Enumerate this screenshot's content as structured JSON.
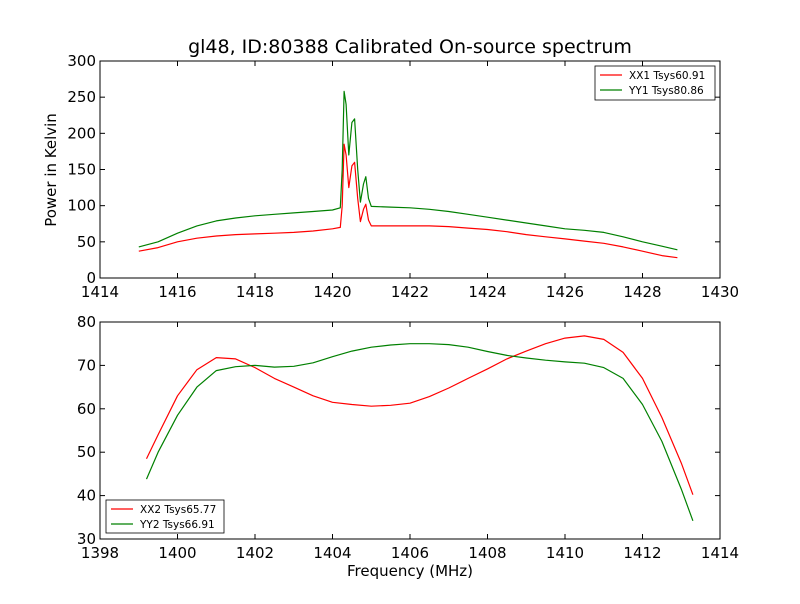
{
  "chart_data": [
    {
      "type": "line",
      "title": "gl48, ID:80388 Calibrated On-source spectrum",
      "xlabel": "",
      "ylabel": "Power in Kelvin",
      "xlim": [
        1414,
        1430
      ],
      "ylim": [
        0,
        300
      ],
      "xticks": [
        "1414",
        "1416",
        "1418",
        "1420",
        "1422",
        "1424",
        "1426",
        "1428",
        "1430"
      ],
      "yticks": [
        "0",
        "50",
        "100",
        "150",
        "200",
        "250",
        "300"
      ],
      "grid": false,
      "legend_position": "top-right",
      "series": [
        {
          "name": "XX1 Tsys60.91",
          "color": "#ff0000",
          "points": [
            [
              1415.0,
              37
            ],
            [
              1415.5,
              42
            ],
            [
              1416.0,
              50
            ],
            [
              1416.5,
              55
            ],
            [
              1417.0,
              58
            ],
            [
              1417.5,
              60
            ],
            [
              1418.0,
              61
            ],
            [
              1418.5,
              62
            ],
            [
              1419.0,
              63
            ],
            [
              1419.5,
              65
            ],
            [
              1420.0,
              68
            ],
            [
              1420.2,
              70
            ],
            [
              1420.25,
              100
            ],
            [
              1420.3,
              185
            ],
            [
              1420.35,
              170
            ],
            [
              1420.42,
              125
            ],
            [
              1420.5,
              155
            ],
            [
              1420.57,
              160
            ],
            [
              1420.65,
              110
            ],
            [
              1420.72,
              78
            ],
            [
              1420.8,
              95
            ],
            [
              1420.86,
              102
            ],
            [
              1420.93,
              80
            ],
            [
              1421.0,
              72
            ],
            [
              1421.5,
              72
            ],
            [
              1422.0,
              72
            ],
            [
              1422.5,
              72
            ],
            [
              1423.0,
              71
            ],
            [
              1423.5,
              69
            ],
            [
              1424.0,
              67
            ],
            [
              1424.5,
              64
            ],
            [
              1425.0,
              60
            ],
            [
              1425.5,
              57
            ],
            [
              1426.0,
              54
            ],
            [
              1426.5,
              51
            ],
            [
              1427.0,
              48
            ],
            [
              1427.5,
              43
            ],
            [
              1428.0,
              37
            ],
            [
              1428.5,
              31
            ],
            [
              1428.9,
              28
            ]
          ]
        },
        {
          "name": "YY1 Tsys80.86",
          "color": "#008000",
          "points": [
            [
              1415.0,
              43
            ],
            [
              1415.5,
              50
            ],
            [
              1416.0,
              62
            ],
            [
              1416.5,
              72
            ],
            [
              1417.0,
              79
            ],
            [
              1417.5,
              83
            ],
            [
              1418.0,
              86
            ],
            [
              1418.5,
              88
            ],
            [
              1419.0,
              90
            ],
            [
              1419.5,
              92
            ],
            [
              1420.0,
              94
            ],
            [
              1420.2,
              97
            ],
            [
              1420.25,
              150
            ],
            [
              1420.3,
              258
            ],
            [
              1420.35,
              240
            ],
            [
              1420.42,
              170
            ],
            [
              1420.5,
              215
            ],
            [
              1420.57,
              220
            ],
            [
              1420.65,
              150
            ],
            [
              1420.72,
              105
            ],
            [
              1420.8,
              130
            ],
            [
              1420.86,
              140
            ],
            [
              1420.93,
              110
            ],
            [
              1421.0,
              99
            ],
            [
              1421.5,
              98
            ],
            [
              1422.0,
              97
            ],
            [
              1422.5,
              95
            ],
            [
              1423.0,
              92
            ],
            [
              1423.5,
              88
            ],
            [
              1424.0,
              84
            ],
            [
              1424.5,
              80
            ],
            [
              1425.0,
              76
            ],
            [
              1425.5,
              72
            ],
            [
              1426.0,
              68
            ],
            [
              1426.5,
              66
            ],
            [
              1427.0,
              63
            ],
            [
              1427.5,
              57
            ],
            [
              1428.0,
              50
            ],
            [
              1428.5,
              44
            ],
            [
              1428.9,
              39
            ]
          ]
        }
      ]
    },
    {
      "type": "line",
      "title": "",
      "xlabel": "Frequency (MHz)",
      "ylabel": "",
      "xlim": [
        1398,
        1414
      ],
      "ylim": [
        30,
        80
      ],
      "xticks": [
        "1398",
        "1400",
        "1402",
        "1404",
        "1406",
        "1408",
        "1410",
        "1412",
        "1414"
      ],
      "yticks": [
        "30",
        "40",
        "50",
        "60",
        "70",
        "80"
      ],
      "grid": false,
      "legend_position": "bottom-left",
      "series": [
        {
          "name": "XX2 Tsys65.77",
          "color": "#ff0000",
          "points": [
            [
              1399.2,
              48.5
            ],
            [
              1399.5,
              54
            ],
            [
              1400.0,
              63
            ],
            [
              1400.5,
              69
            ],
            [
              1401.0,
              71.8
            ],
            [
              1401.5,
              71.5
            ],
            [
              1402.0,
              69.5
            ],
            [
              1402.5,
              67
            ],
            [
              1403.0,
              65
            ],
            [
              1403.5,
              63
            ],
            [
              1404.0,
              61.5
            ],
            [
              1404.5,
              61
            ],
            [
              1405.0,
              60.6
            ],
            [
              1405.5,
              60.8
            ],
            [
              1406.0,
              61.3
            ],
            [
              1406.5,
              62.8
            ],
            [
              1407.0,
              64.8
            ],
            [
              1407.5,
              67
            ],
            [
              1408.0,
              69.2
            ],
            [
              1408.5,
              71.5
            ],
            [
              1409.0,
              73.3
            ],
            [
              1409.5,
              75
            ],
            [
              1410.0,
              76.3
            ],
            [
              1410.5,
              76.8
            ],
            [
              1411.0,
              76
            ],
            [
              1411.5,
              73
            ],
            [
              1412.0,
              67
            ],
            [
              1412.5,
              58
            ],
            [
              1413.0,
              47.5
            ],
            [
              1413.3,
              40.2
            ]
          ]
        },
        {
          "name": "YY2 Tsys66.91",
          "color": "#008000",
          "points": [
            [
              1399.2,
              43.8
            ],
            [
              1399.5,
              50
            ],
            [
              1400.0,
              58.5
            ],
            [
              1400.5,
              65
            ],
            [
              1401.0,
              68.8
            ],
            [
              1401.5,
              69.7
            ],
            [
              1402.0,
              70
            ],
            [
              1402.5,
              69.6
            ],
            [
              1403.0,
              69.8
            ],
            [
              1403.5,
              70.6
            ],
            [
              1404.0,
              72
            ],
            [
              1404.5,
              73.3
            ],
            [
              1405.0,
              74.2
            ],
            [
              1405.5,
              74.7
            ],
            [
              1406.0,
              75
            ],
            [
              1406.5,
              75
            ],
            [
              1407.0,
              74.8
            ],
            [
              1407.5,
              74.2
            ],
            [
              1408.0,
              73.2
            ],
            [
              1408.5,
              72.3
            ],
            [
              1409.0,
              71.7
            ],
            [
              1409.5,
              71.2
            ],
            [
              1410.0,
              70.8
            ],
            [
              1410.5,
              70.5
            ],
            [
              1411.0,
              69.5
            ],
            [
              1411.5,
              67
            ],
            [
              1412.0,
              61
            ],
            [
              1412.5,
              52.5
            ],
            [
              1413.0,
              41.5
            ],
            [
              1413.3,
              34.2
            ]
          ]
        }
      ]
    }
  ]
}
